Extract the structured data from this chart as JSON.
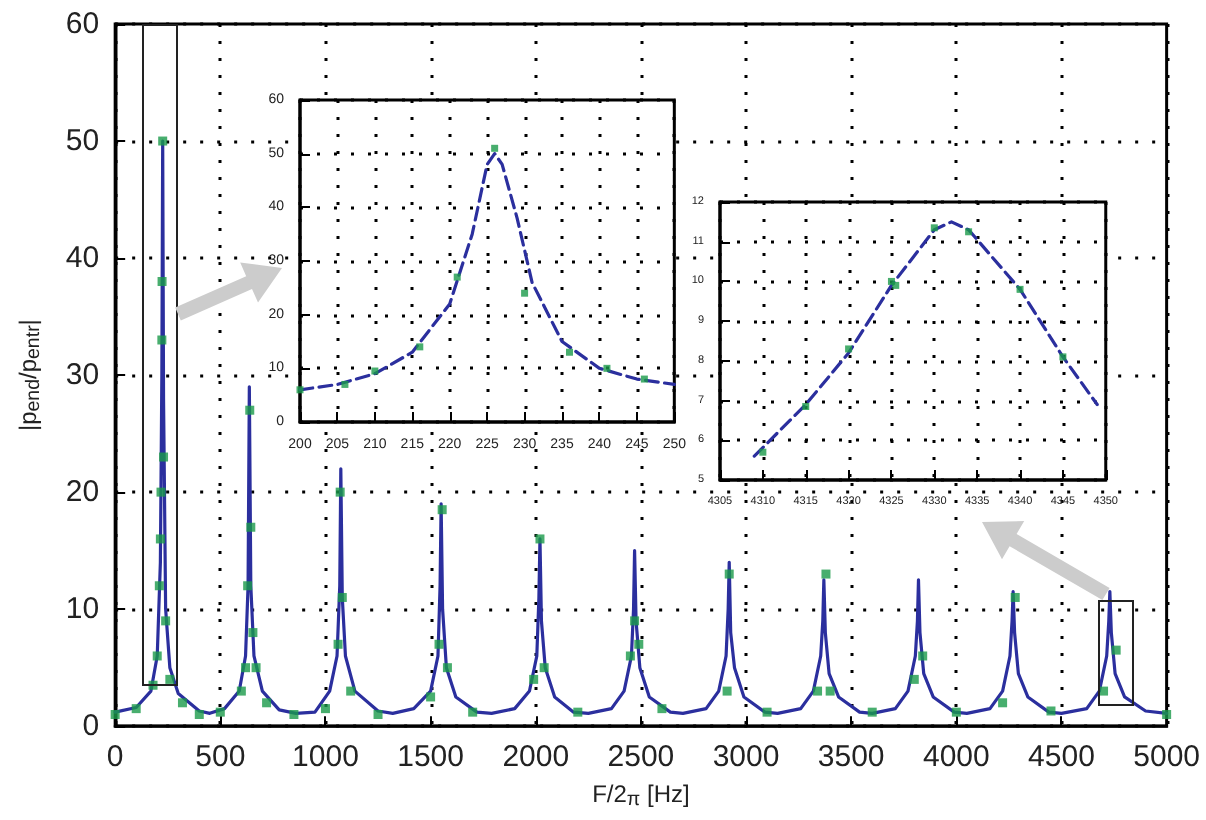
{
  "chart_data": [
    {
      "type": "line",
      "xlabel": "F/2$_{π}$ [Hz]",
      "ylabel": "|p$_{end}$/p$_{entr}$|",
      "xlim": [
        0,
        5000
      ],
      "ylim": [
        0,
        60
      ],
      "xticks": [
        0,
        500,
        1000,
        1500,
        2000,
        2500,
        3000,
        3500,
        4000,
        4500,
        5000
      ],
      "yticks": [
        0,
        10,
        20,
        30,
        40,
        50,
        60
      ],
      "grid": true,
      "series": [
        {
          "color": "#2b2f9e",
          "marker": "none",
          "line_style": "solid",
          "x": [
            0,
            100,
            170,
            200,
            215,
            222,
            226,
            230,
            240,
            260,
            300,
            400,
            450,
            520,
            590,
            620,
            632,
            638,
            645,
            660,
            700,
            780,
            860,
            950,
            1020,
            1055,
            1068,
            1073,
            1080,
            1095,
            1140,
            1250,
            1320,
            1420,
            1500,
            1535,
            1545,
            1550,
            1557,
            1575,
            1620,
            1720,
            1790,
            1900,
            1970,
            2005,
            2015,
            2020,
            2027,
            2045,
            2090,
            2180,
            2250,
            2360,
            2420,
            2455,
            2465,
            2470,
            2477,
            2495,
            2540,
            2640,
            2700,
            2810,
            2870,
            2905,
            2915,
            2920,
            2927,
            2945,
            2990,
            3090,
            3150,
            3260,
            3320,
            3355,
            3365,
            3370,
            3377,
            3395,
            3440,
            3540,
            3600,
            3710,
            3770,
            3805,
            3815,
            3820,
            3827,
            3845,
            3890,
            3990,
            4050,
            4160,
            4220,
            4255,
            4265,
            4270,
            4277,
            4295,
            4340,
            4440,
            4500,
            4620,
            4680,
            4715,
            4725,
            4730,
            4737,
            4755,
            4800,
            4900,
            5000
          ],
          "values": [
            1.2,
            1.6,
            3,
            6,
            14,
            30,
            50,
            28,
            10,
            5,
            2.8,
            1.3,
            1.1,
            1.5,
            3,
            6,
            12,
            29,
            12,
            6,
            3,
            1.4,
            1.1,
            1.2,
            3,
            6,
            12,
            22,
            11,
            6,
            3,
            1.3,
            1.1,
            1.5,
            3,
            6,
            12,
            19,
            10,
            5,
            2.5,
            1.2,
            1.1,
            1.5,
            3,
            6,
            11,
            16,
            9,
            5,
            2.5,
            1.2,
            1.1,
            1.5,
            3,
            6,
            10,
            15,
            9,
            5,
            2.5,
            1.2,
            1.1,
            1.5,
            3,
            6,
            10,
            14,
            8,
            5,
            2.5,
            1.2,
            1.1,
            1.5,
            3,
            6,
            9,
            12.5,
            8,
            4.5,
            2.5,
            1.2,
            1.1,
            1.5,
            3,
            6,
            9,
            12.5,
            8,
            4.5,
            2.5,
            1.2,
            1.1,
            1.5,
            3,
            6,
            9,
            11.5,
            8,
            4.5,
            2.5,
            1.2,
            1.1,
            1.5,
            3,
            6,
            9,
            11.5,
            8,
            4.5,
            2.5,
            1.3,
            1.1
          ]
        },
        {
          "type": "scatter",
          "color": "#1a9a4a",
          "marker": "square",
          "x": [
            0,
            100,
            180,
            200,
            210,
            215,
            218,
            222,
            223,
            226,
            230,
            240,
            260,
            320,
            400,
            500,
            600,
            620,
            630,
            640,
            645,
            655,
            670,
            720,
            850,
            1000,
            1060,
            1070,
            1080,
            1120,
            1250,
            1500,
            1540,
            1555,
            1580,
            1700,
            1990,
            2020,
            2040,
            2200,
            2450,
            2470,
            2490,
            2600,
            2910,
            2920,
            3100,
            3340,
            3380,
            3400,
            3600,
            3800,
            3840,
            4000,
            4220,
            4280,
            4450,
            4700,
            4760,
            5000
          ],
          "values": [
            1,
            1.5,
            3.5,
            6,
            12,
            16,
            20,
            33,
            38,
            50,
            23,
            9,
            4,
            2,
            1,
            1.2,
            3,
            5,
            12,
            27,
            17,
            8,
            5,
            2,
            1,
            1.5,
            7,
            20,
            11,
            3,
            1,
            2.5,
            7,
            18.5,
            5,
            1.2,
            4,
            16,
            5,
            1.2,
            6,
            9,
            7,
            1.5,
            3,
            13,
            1.2,
            3,
            13,
            3,
            1.2,
            4,
            6,
            1.2,
            2,
            11,
            1.3,
            3,
            6.5,
            1
          ]
        }
      ]
    },
    {
      "type": "line",
      "xlim": [
        200,
        250
      ],
      "ylim": [
        0,
        60
      ],
      "xticks": [
        200,
        205,
        210,
        215,
        220,
        225,
        230,
        235,
        240,
        245,
        250
      ],
      "yticks": [
        0,
        10,
        20,
        30,
        40,
        50,
        60
      ],
      "grid": true,
      "series": [
        {
          "color": "#2b2f9e",
          "marker": "none",
          "line_style": "dashed",
          "x": [
            200,
            205,
            210,
            215,
            220,
            223,
            225,
            226,
            227,
            229,
            231,
            235,
            240,
            245,
            250
          ],
          "values": [
            6,
            7,
            9,
            13,
            22,
            35,
            48,
            50,
            48,
            38,
            26,
            15,
            10,
            8,
            7
          ]
        },
        {
          "type": "scatter",
          "color": "#1a9a4a",
          "marker": "square",
          "x": [
            200,
            206,
            210,
            216,
            221,
            226,
            230,
            236,
            241,
            246
          ],
          "values": [
            6,
            7,
            9.5,
            14,
            27,
            51,
            24,
            13,
            10,
            8
          ]
        }
      ]
    },
    {
      "type": "line",
      "xlim": [
        4305,
        4350
      ],
      "ylim": [
        5,
        12
      ],
      "xticks": [
        4305,
        4310,
        4315,
        4320,
        4325,
        4330,
        4335,
        4340,
        4345,
        4350
      ],
      "yticks": [
        5,
        6,
        7,
        8,
        9,
        10,
        11,
        12
      ],
      "grid": true,
      "series": [
        {
          "color": "#2b2f9e",
          "marker": "none",
          "line_style": "dashed",
          "x": [
            4309,
            4315,
            4320,
            4325,
            4330,
            4332,
            4334,
            4340,
            4345,
            4349
          ],
          "values": [
            5.6,
            6.9,
            8.2,
            9.9,
            11.3,
            11.5,
            11.3,
            9.8,
            8.1,
            6.9
          ]
        },
        {
          "type": "scatter",
          "color": "#1a9a4a",
          "marker": "square",
          "x": [
            4310,
            4315,
            4320,
            4325,
            4325.5,
            4330,
            4334,
            4340,
            4345
          ],
          "values": [
            5.7,
            6.85,
            8.3,
            10,
            9.9,
            11.35,
            11.25,
            9.8,
            8.1
          ]
        }
      ]
    }
  ]
}
